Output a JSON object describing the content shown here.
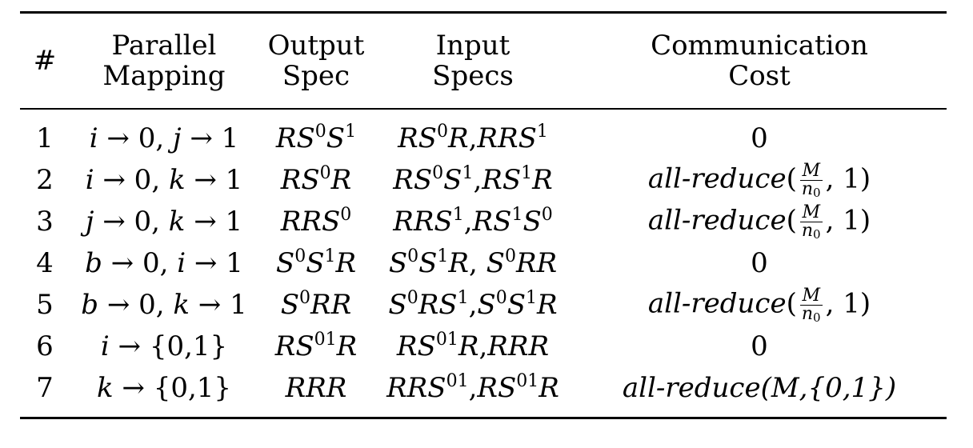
{
  "table": {
    "headers": [
      {
        "line1": "#",
        "line2": ""
      },
      {
        "line1": "Parallel",
        "line2": "Mapping"
      },
      {
        "line1": "Output",
        "line2": "Spec"
      },
      {
        "line1": "Input",
        "line2": "Specs"
      },
      {
        "line1": "Communication",
        "line2": "Cost"
      }
    ],
    "rows": [
      {
        "num": "1",
        "map_a": "i",
        "map_a_to": "0",
        "map_b": "j",
        "map_b_to": "1"
      },
      {
        "num": "2",
        "map_a": "i",
        "map_a_to": "0",
        "map_b": "k",
        "map_b_to": "1"
      },
      {
        "num": "3",
        "map_a": "j",
        "map_a_to": "0",
        "map_b": "k",
        "map_b_to": "1"
      },
      {
        "num": "4",
        "map_a": "b",
        "map_a_to": "0",
        "map_b": "i",
        "map_b_to": "1"
      },
      {
        "num": "5",
        "map_a": "b",
        "map_a_to": "0",
        "map_b": "k",
        "map_b_to": "1"
      },
      {
        "num": "6",
        "map_a": "i",
        "map_a_to": "{0,1}"
      },
      {
        "num": "7",
        "map_a": "k",
        "map_a_to": "{0,1}"
      }
    ],
    "cost_zero": "0",
    "cost_fn": "all-reduce",
    "frac_num": "M",
    "frac_den": "n",
    "frac_den_sub": "0",
    "cost_arg": "1",
    "cost_full": "all-reduce(M,{0,1})"
  }
}
